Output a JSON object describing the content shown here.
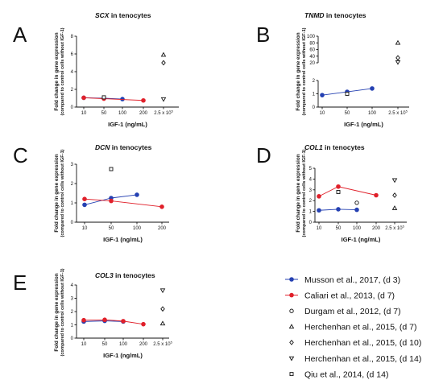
{
  "figure": {
    "y_label_main": "Fold change in gene expression",
    "y_label_sub": "(compared to control cells without IGF-1)",
    "x_label": "IGF-1 (ng/mL)"
  },
  "colors": {
    "musson": "#2541b2",
    "caliari": "#e0202a",
    "open": "#111111",
    "axis": "#111111"
  },
  "legend": [
    {
      "key": "musson",
      "label": "Musson et al., 2017, (d 3)",
      "marker": "filled-circle",
      "color": "#2541b2",
      "line": true
    },
    {
      "key": "caliari",
      "label": "Caliari et al., 2013, (d 7)",
      "marker": "filled-circle",
      "color": "#e0202a",
      "line": true
    },
    {
      "key": "durgam",
      "label": "Durgam et al., 2012, (d 7)",
      "marker": "open-circle"
    },
    {
      "key": "herch7",
      "label": "Herchenhan et al., 2015, (d 7)",
      "marker": "open-triangle-up"
    },
    {
      "key": "herch10",
      "label": "Herchenhan et al., 2015, (d 10)",
      "marker": "open-diamond"
    },
    {
      "key": "herch14",
      "label": "Herchenhan et al., 2015, (d 14)",
      "marker": "open-triangle-down"
    },
    {
      "key": "qiu",
      "label": "Qiu et al., 2014, (d 14)",
      "marker": "open-square"
    }
  ],
  "chart_data": [
    {
      "panel": "A",
      "gene": "SCX",
      "title_suffix": " in tenocytes",
      "type": "scatter",
      "x_categories": [
        "10",
        "50",
        "100",
        "200"
      ],
      "x_extra_tick": "2.5 x 10",
      "y_ticks": [
        "0",
        "2",
        "4",
        "6",
        "8"
      ],
      "ylim": [
        0,
        8
      ],
      "series": [
        {
          "key": "musson",
          "points": [
            [
              "10",
              1.05
            ],
            [
              "50",
              1.0
            ],
            [
              "100",
              0.9
            ]
          ]
        },
        {
          "key": "caliari",
          "points": [
            [
              "10",
              1.05
            ],
            [
              "50",
              0.95
            ],
            [
              "200",
              0.75
            ]
          ]
        },
        {
          "key": "qiu",
          "points": [
            [
              "50",
              1.1
            ]
          ]
        },
        {
          "key": "herch7",
          "points": [
            [
              "2.5e5",
              5.9
            ]
          ]
        },
        {
          "key": "herch10",
          "points": [
            [
              "2.5e5",
              5.0
            ]
          ]
        },
        {
          "key": "herch14",
          "points": [
            [
              "2.5e5",
              0.9
            ]
          ]
        }
      ]
    },
    {
      "panel": "B",
      "gene": "TNMD",
      "title_suffix": " in tenocytes",
      "type": "scatter",
      "x_categories": [
        "10",
        "50",
        "100"
      ],
      "x_extra_tick": "2.5 x 10",
      "y_ticks_lower": [
        "0",
        "1",
        "2"
      ],
      "y_ticks_upper": [
        "20",
        "40",
        "60",
        "80",
        "100"
      ],
      "broken_axis": true,
      "series": [
        {
          "key": "musson",
          "points": [
            [
              "10",
              0.9
            ],
            [
              "50",
              1.15
            ],
            [
              "100",
              1.4
            ]
          ]
        },
        {
          "key": "qiu",
          "points": [
            [
              "50",
              1.0
            ]
          ]
        },
        {
          "key": "herch7",
          "points": [
            [
              "2.5e5",
              80
            ]
          ]
        },
        {
          "key": "herch10",
          "points": [
            [
              "2.5e5",
              35
            ]
          ]
        },
        {
          "key": "herch14",
          "points": [
            [
              "2.5e5",
              22
            ]
          ]
        }
      ]
    },
    {
      "panel": "C",
      "gene": "DCN",
      "title_suffix": " in tenocytes",
      "type": "scatter",
      "x_categories": [
        "10",
        "50",
        "100",
        "200"
      ],
      "y_ticks": [
        "0",
        "1",
        "2",
        "3"
      ],
      "ylim": [
        0,
        3
      ],
      "series": [
        {
          "key": "musson",
          "points": [
            [
              "10",
              0.9
            ],
            [
              "50",
              1.25
            ],
            [
              "100",
              1.42
            ]
          ]
        },
        {
          "key": "caliari",
          "points": [
            [
              "10",
              1.2
            ],
            [
              "50",
              1.1
            ],
            [
              "200",
              0.8
            ]
          ]
        },
        {
          "key": "qiu",
          "points": [
            [
              "50",
              2.75
            ]
          ]
        }
      ]
    },
    {
      "panel": "D",
      "gene": "COL1",
      "title_suffix": " in tenocytes",
      "type": "scatter",
      "x_categories": [
        "10",
        "50",
        "100",
        "200"
      ],
      "x_extra_tick": "2.5 x 10",
      "y_ticks": [
        "0",
        "1",
        "2",
        "3",
        "4",
        "5"
      ],
      "ylim": [
        0,
        5
      ],
      "series": [
        {
          "key": "musson",
          "points": [
            [
              "10",
              1.1
            ],
            [
              "50",
              1.2
            ],
            [
              "100",
              1.15
            ]
          ]
        },
        {
          "key": "caliari",
          "points": [
            [
              "10",
              2.4
            ],
            [
              "50",
              3.3
            ],
            [
              "200",
              2.5
            ]
          ]
        },
        {
          "key": "qiu",
          "points": [
            [
              "50",
              2.8
            ]
          ]
        },
        {
          "key": "durgam",
          "points": [
            [
              "100",
              1.8
            ]
          ]
        },
        {
          "key": "herch14",
          "points": [
            [
              "2.5e5",
              3.9
            ]
          ]
        },
        {
          "key": "herch10",
          "points": [
            [
              "2.5e5",
              2.5
            ]
          ]
        },
        {
          "key": "herch7",
          "points": [
            [
              "2.5e5",
              1.3
            ]
          ]
        }
      ]
    },
    {
      "panel": "E",
      "gene": "COL3",
      "title_suffix": " in tenocytes",
      "type": "scatter",
      "x_categories": [
        "10",
        "50",
        "100",
        "200"
      ],
      "x_extra_tick": "2.5 x 10",
      "y_ticks": [
        "0",
        "1",
        "2",
        "3",
        "4"
      ],
      "ylim": [
        0,
        4
      ],
      "series": [
        {
          "key": "musson",
          "points": [
            [
              "10",
              1.25
            ],
            [
              "50",
              1.3
            ],
            [
              "100",
              1.25
            ]
          ]
        },
        {
          "key": "caliari",
          "points": [
            [
              "10",
              1.35
            ],
            [
              "50",
              1.38
            ],
            [
              "100",
              1.28
            ],
            [
              "200",
              1.05
            ]
          ]
        },
        {
          "key": "herch14",
          "points": [
            [
              "2.5e5",
              3.6
            ]
          ]
        },
        {
          "key": "herch10",
          "points": [
            [
              "2.5e5",
              2.2
            ]
          ]
        },
        {
          "key": "herch7",
          "points": [
            [
              "2.5e5",
              1.1
            ]
          ]
        }
      ]
    }
  ]
}
